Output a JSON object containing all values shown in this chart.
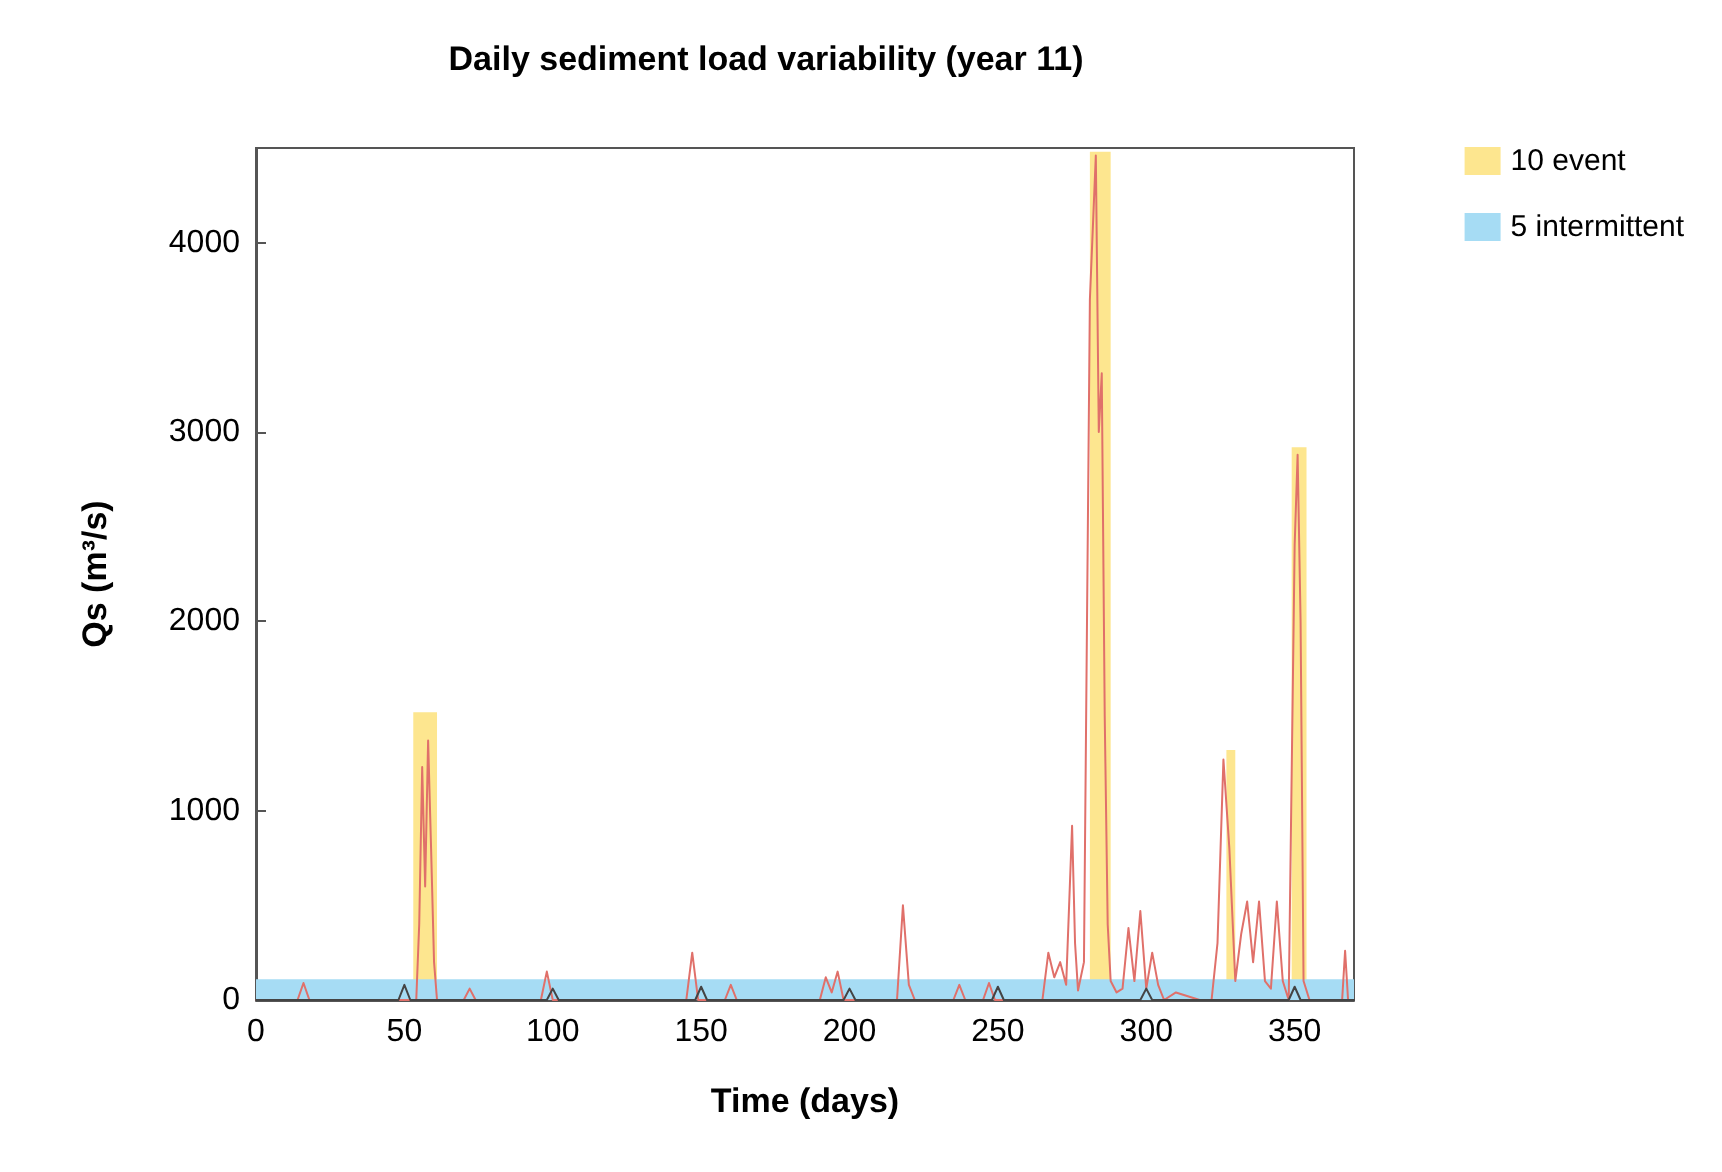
{
  "chart_data": {
    "type": "line",
    "title": "Daily sediment load variability (year 11)",
    "xlabel": "Time (days)",
    "ylabel": "Qs (m³/s)",
    "xlim": [
      0,
      370
    ],
    "ylim": [
      0,
      4500
    ],
    "xticks": [
      0,
      50,
      100,
      150,
      200,
      250,
      300,
      350
    ],
    "yticks": [
      0,
      1000,
      2000,
      3000,
      4000
    ],
    "grid": false,
    "legend": "top right",
    "marker": "none",
    "line_style": "solid",
    "series": [
      {
        "name": "10 event",
        "type": "area",
        "color": "#fde68f",
        "x": [
          53,
          53,
          61,
          61,
          281,
          281,
          288,
          288,
          327,
          327,
          330,
          330,
          349,
          349,
          354,
          354
        ],
        "values": [
          0,
          1520,
          1520,
          0,
          0,
          4480,
          4480,
          0,
          0,
          1320,
          1320,
          0,
          0,
          2920,
          2920,
          0
        ]
      },
      {
        "name": "5 intermittent",
        "type": "area",
        "color": "#a6dcf4",
        "x": [
          0,
          370
        ],
        "values": [
          110,
          110
        ]
      },
      {
        "color": "#e0706a",
        "x": [
          0,
          14,
          16,
          18,
          45,
          54,
          55,
          56,
          57,
          58,
          59,
          60,
          61,
          62,
          70,
          72,
          74,
          96,
          98,
          100,
          145,
          147,
          149,
          158,
          160,
          162,
          190,
          192,
          194,
          196,
          198,
          216,
          218,
          220,
          222,
          235,
          237,
          239,
          245,
          247,
          249,
          265,
          267,
          269,
          271,
          273,
          275,
          276,
          277,
          279,
          281,
          283,
          284,
          285,
          286,
          287,
          288,
          290,
          292,
          294,
          296,
          298,
          300,
          302,
          304,
          306,
          310,
          318,
          322,
          324,
          326,
          328,
          330,
          332,
          334,
          336,
          338,
          340,
          342,
          344,
          346,
          348,
          350,
          351,
          352,
          353,
          355,
          360,
          366,
          367,
          368
        ],
        "values": [
          0,
          0,
          90,
          0,
          0,
          0,
          400,
          1230,
          600,
          1370,
          800,
          200,
          0,
          0,
          0,
          60,
          0,
          0,
          150,
          0,
          0,
          250,
          0,
          0,
          80,
          0,
          0,
          120,
          40,
          150,
          0,
          0,
          500,
          80,
          0,
          0,
          80,
          0,
          0,
          90,
          0,
          0,
          250,
          120,
          200,
          80,
          920,
          300,
          50,
          200,
          3700,
          4460,
          3000,
          3310,
          1500,
          400,
          100,
          40,
          60,
          380,
          100,
          470,
          60,
          250,
          80,
          0,
          40,
          0,
          0,
          300,
          1270,
          800,
          100,
          350,
          520,
          200,
          520,
          100,
          60,
          520,
          100,
          0,
          2400,
          2880,
          2000,
          100,
          0,
          0,
          0,
          260,
          0
        ]
      },
      {
        "color": "#444444",
        "x": [
          0,
          48,
          50,
          52,
          98,
          100,
          102,
          148,
          150,
          152,
          198,
          200,
          202,
          248,
          250,
          252,
          298,
          300,
          302,
          348,
          350,
          352,
          370
        ],
        "values": [
          0,
          0,
          80,
          0,
          0,
          60,
          0,
          0,
          70,
          0,
          0,
          60,
          0,
          0,
          70,
          0,
          0,
          60,
          0,
          0,
          70,
          0,
          0
        ]
      }
    ]
  }
}
